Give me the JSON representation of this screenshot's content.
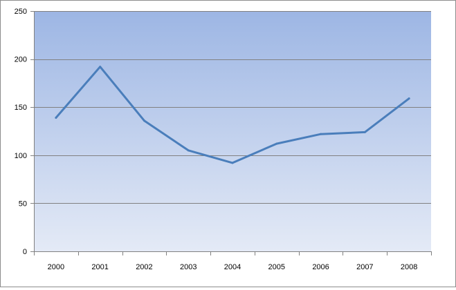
{
  "chart_data": {
    "type": "line",
    "categories": [
      "2000",
      "2001",
      "2002",
      "2003",
      "2004",
      "2005",
      "2006",
      "2007",
      "2008"
    ],
    "series": [
      {
        "values": [
          139,
          192,
          136,
          105,
          92,
          112,
          122,
          124,
          159
        ]
      }
    ],
    "ylim": [
      0,
      250
    ],
    "yticks": [
      0,
      50,
      100,
      150,
      200,
      250
    ],
    "grid": true,
    "legend": "none",
    "colors": {
      "line": "#4a7ebb",
      "plot_top": "#9db6e4",
      "plot_bottom": "#e4eaf6",
      "grid": "#808080",
      "axis": "#808080"
    }
  }
}
